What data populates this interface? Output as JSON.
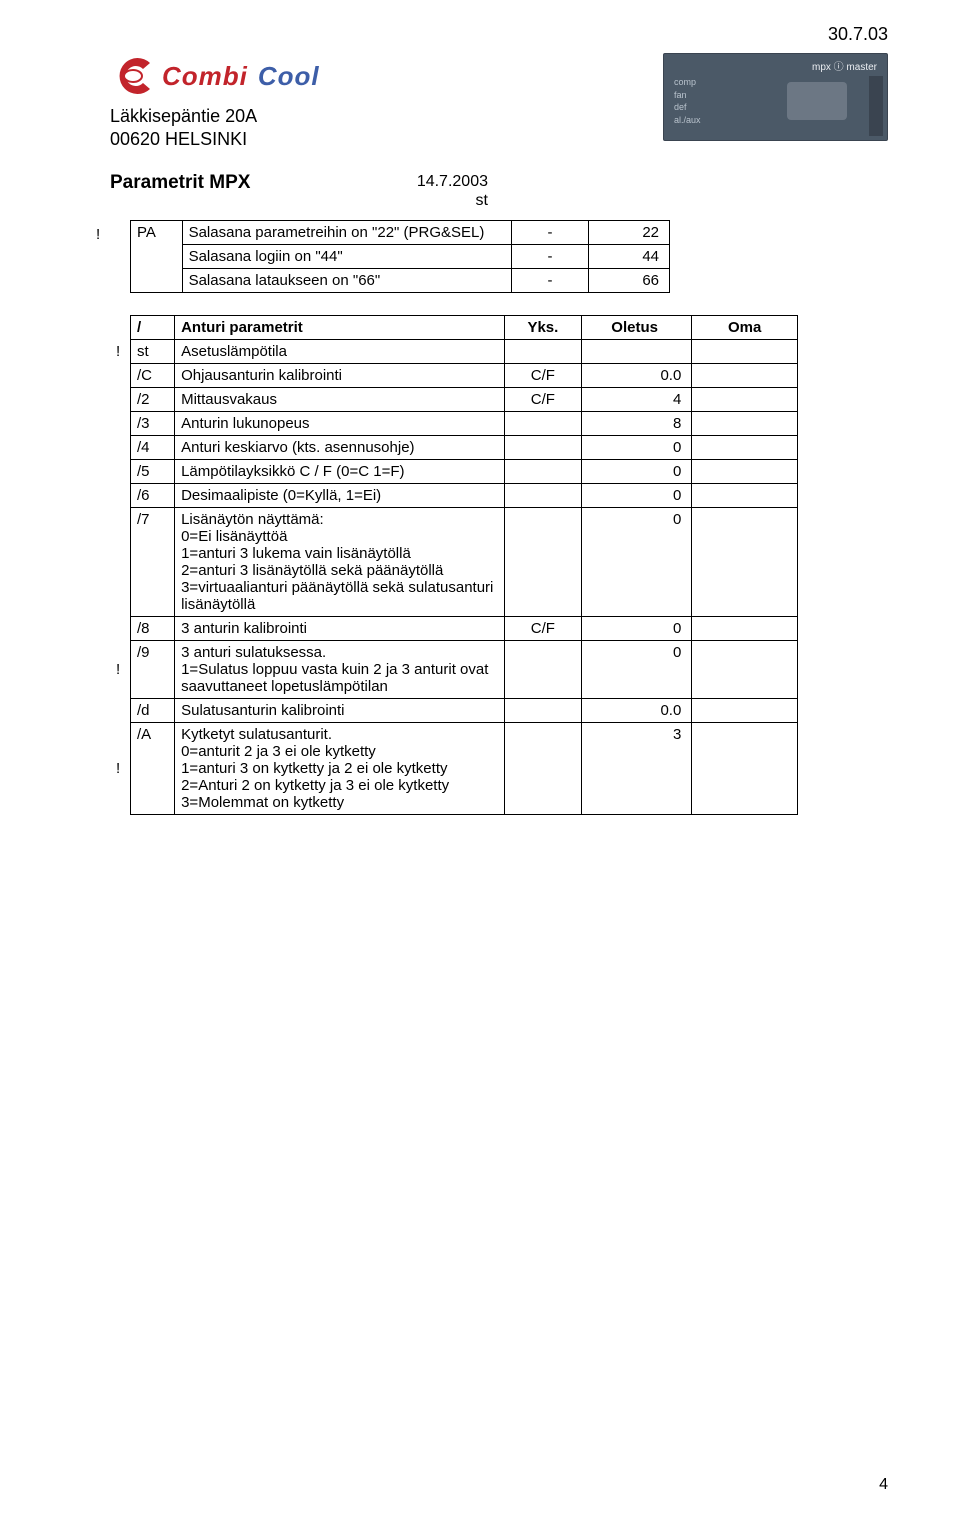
{
  "colors": {
    "logo_red": "#c2242b",
    "logo_blue": "#3d5ea8",
    "device_bg": "#4b5967",
    "device_border": "#3a4450",
    "device_text": "#cbd3dc"
  },
  "header": {
    "top_date": "30.7.03",
    "logo_text_left": "Combi",
    "logo_text_right": "Cool",
    "address_line1": "Läkkisepäntie 20A",
    "address_line2": "00620 HELSINKI",
    "device_label_mpx": "mpx ⓘ master",
    "device_labels": "comp\nfan\ndef\nal./aux"
  },
  "title": "Parametrit MPX",
  "doc_date": "14.7.2003",
  "doc_date_sub": "st",
  "table1": {
    "exclam_row": "!",
    "rows": [
      {
        "code": "PA",
        "desc": "Salasana parametreihin on \"22\" (PRG&SEL)",
        "unit": "-",
        "val": "22"
      },
      {
        "code": "",
        "desc": "Salasana logiin on \"44\"",
        "unit": "-",
        "val": "44"
      },
      {
        "code": "",
        "desc": "Salasana lataukseen on \"66\"",
        "unit": "-",
        "val": "66"
      }
    ]
  },
  "table2": {
    "headers": {
      "c1": "/",
      "c2": "Anturi parametrit",
      "c3": "Yks.",
      "c4": "Oletus",
      "c5": "Oma"
    },
    "exclam": "!",
    "rows": [
      {
        "excl": "!",
        "code": "st",
        "desc": "Asetuslämpötila",
        "unit": "",
        "val": ""
      },
      {
        "code": "/C",
        "desc": "Ohjausanturin kalibrointi",
        "unit": "C/F",
        "val": "0.0"
      },
      {
        "code": "/2",
        "desc": "Mittausvakaus",
        "unit": "C/F",
        "val": "4"
      },
      {
        "code": "/3",
        "desc": "Anturin lukunopeus",
        "unit": "",
        "val": "8"
      },
      {
        "code": "/4",
        "desc": "Anturi keskiarvo (kts. asennusohje)",
        "unit": "",
        "val": "0"
      },
      {
        "code": "/5",
        "desc": "Lämpötilayksikkö C / F (0=C 1=F)",
        "unit": "",
        "val": "0"
      },
      {
        "code": "/6",
        "desc": "Desimaalipiste (0=Kyllä, 1=Ei)",
        "unit": "",
        "val": "0"
      },
      {
        "code": "/7",
        "desc": "Lisänäytön näyttämä:\n0=Ei lisänäyttöä\n1=anturi 3 lukema vain lisänäytöllä\n2=anturi 3 lisänäytöllä sekä päänäytöllä\n3=virtuaalianturi päänäytöllä sekä sulatusanturi lisänäytöllä",
        "unit": "",
        "val": "0"
      },
      {
        "code": "/8",
        "desc": "3 anturin kalibrointi",
        "unit": "C/F",
        "val": "0"
      },
      {
        "excl": "!",
        "code": "/9",
        "desc": "3 anturi sulatuksessa.\n1=Sulatus loppuu vasta kuin 2 ja 3 anturit ovat saavuttaneet lopetuslämpötilan",
        "unit": "",
        "val": "0"
      },
      {
        "code": "/d",
        "desc": "Sulatusanturin kalibrointi",
        "unit": "",
        "val": "0.0"
      },
      {
        "excl": "!",
        "code": "/A",
        "desc": "Kytketyt sulatusanturit.\n0=anturit 2 ja 3 ei ole kytketty\n1=anturi 3 on kytketty ja 2 ei ole kytketty\n2=Anturi 2 on kytketty ja 3 ei ole kytketty\n3=Molemmat on kytketty",
        "unit": "",
        "val": "3"
      }
    ]
  },
  "page_number": "4"
}
